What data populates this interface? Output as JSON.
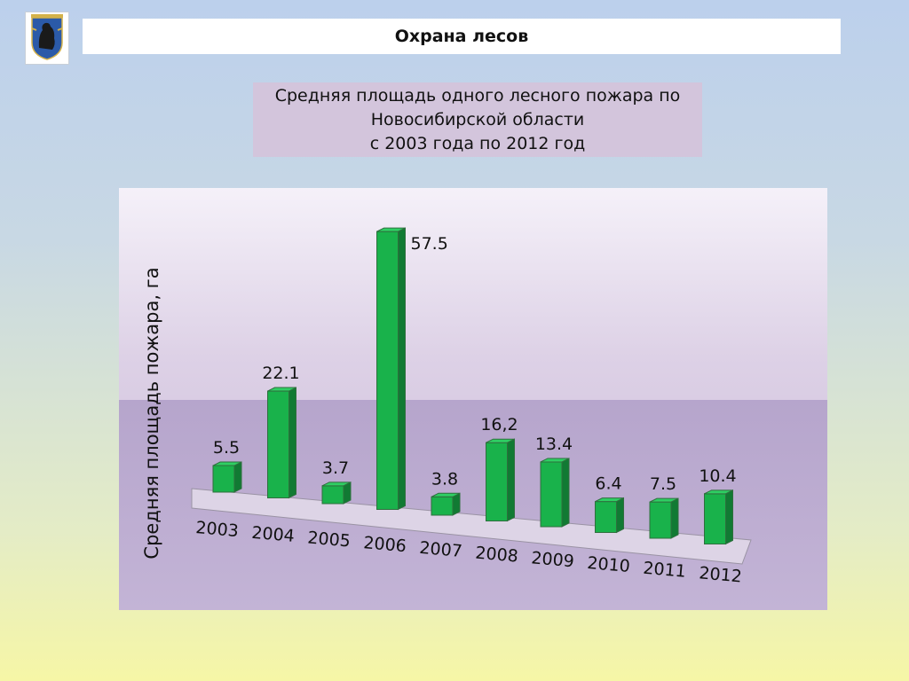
{
  "header": {
    "title": "Охрана лесов"
  },
  "chart_title_lines": [
    "Средняя площадь одного лесного пожара по",
    "Новосибирской области",
    "с 2003 года по  2012 год"
  ],
  "colors": {
    "bar_front": "#19b24b",
    "bar_side": "#117a33",
    "bar_top": "#2ecf63",
    "bar_outline": "#2f6f3e"
  },
  "chart_data": {
    "type": "bar",
    "title": "Средняя площадь одного лесного пожара по Новосибирской области с 2003 года по  2012 год",
    "xlabel": "",
    "ylabel": "Средняя площадь пожара, га",
    "categories": [
      "2003",
      "2004",
      "2005",
      "2006",
      "2007",
      "2008",
      "2009",
      "2010",
      "2011",
      "2012"
    ],
    "values": [
      5.5,
      22.1,
      3.7,
      57.5,
      3.8,
      16.2,
      13.4,
      6.4,
      7.5,
      10.4
    ],
    "value_labels": [
      "5.5",
      "22.1",
      "3.7",
      "57.5",
      "3.8",
      "16,2",
      "13.4",
      "6.4",
      "7.5",
      "10.4"
    ],
    "ylim": [
      0,
      60
    ],
    "grid": false,
    "legend": "none",
    "style": "3d-column"
  }
}
